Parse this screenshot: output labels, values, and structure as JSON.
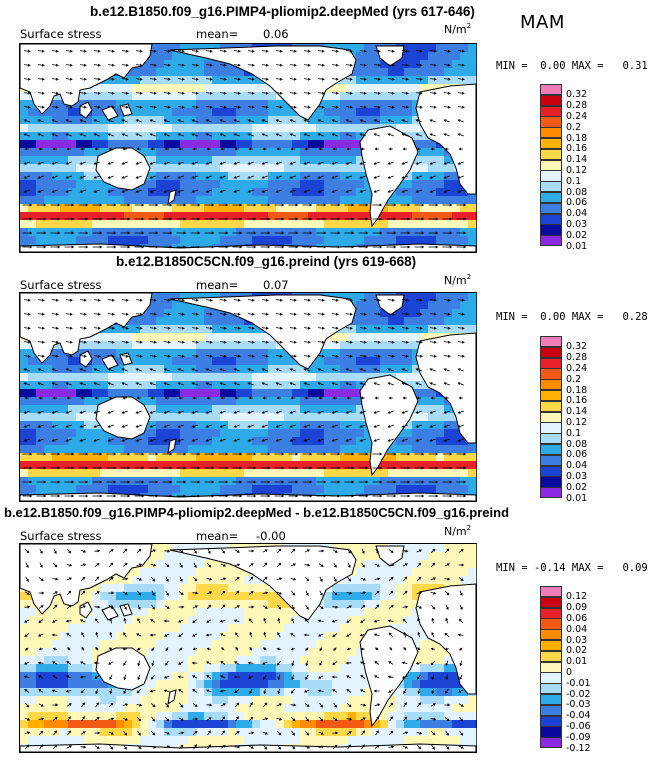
{
  "season": "MAM",
  "chart_data": [
    {
      "type": "heatmap",
      "title": "b.e12.B1850.f09_g16.PIMP4-pliomip2.deepMed (yrs 617-646)",
      "variable": "Surface stress",
      "mean_label": "mean=",
      "mean_value": "0.06",
      "units_base": "N/m",
      "units_exp": "2",
      "min_label": "MIN =",
      "min_value": "0.00",
      "max_label": "MAX =",
      "max_value": "0.31",
      "colorbar_labels": [
        "0.32",
        "0.28",
        "0.24",
        "0.2",
        "0.18",
        "0.16",
        "0.14",
        "0.12",
        "0.1",
        "0.08",
        "0.06",
        "0.04",
        "0.03",
        "0.02",
        "0.01"
      ],
      "colorbar_colors": [
        "#f07cb8",
        "#cc0010",
        "#e8202a",
        "#f05a14",
        "#ff8c00",
        "#ffb000",
        "#ffd84a",
        "#fff8b8",
        "#e4f4ff",
        "#a8dcf6",
        "#2eaae8",
        "#3c7ee2",
        "#1c44d4",
        "#0a0a9e",
        "#8a2be2"
      ]
    },
    {
      "type": "heatmap",
      "title": "b.e12.B1850C5CN.f09_g16.preind (yrs 619-668)",
      "variable": "Surface stress",
      "mean_label": "mean=",
      "mean_value": "0.07",
      "units_base": "N/m",
      "units_exp": "2",
      "min_label": "MIN =",
      "min_value": "0.00",
      "max_label": "MAX =",
      "max_value": "0.28",
      "colorbar_labels": [
        "0.32",
        "0.28",
        "0.24",
        "0.2",
        "0.18",
        "0.16",
        "0.14",
        "0.12",
        "0.1",
        "0.08",
        "0.06",
        "0.04",
        "0.03",
        "0.02",
        "0.01"
      ],
      "colorbar_colors": [
        "#f07cb8",
        "#cc0010",
        "#e8202a",
        "#f05a14",
        "#ff8c00",
        "#ffb000",
        "#ffd84a",
        "#fff8b8",
        "#e4f4ff",
        "#a8dcf6",
        "#2eaae8",
        "#3c7ee2",
        "#1c44d4",
        "#0a0a9e",
        "#8a2be2"
      ]
    },
    {
      "type": "heatmap",
      "title": "b.e12.B1850.f09_g16.PIMP4-pliomip2.deepMed - b.e12.B1850C5CN.f09_g16.preind",
      "variable": "Surface stress",
      "mean_label": "mean=",
      "mean_value": "-0.00",
      "units_base": "N/m",
      "units_exp": "2",
      "min_label": "MIN =",
      "min_value": "-0.14",
      "max_label": "MAX =",
      "max_value": "0.09",
      "colorbar_labels": [
        "0.12",
        "0.09",
        "0.06",
        "0.04",
        "0.03",
        "0.02",
        "0.01",
        "0",
        "-0.01",
        "-0.02",
        "-0.03",
        "-0.04",
        "-0.06",
        "-0.09",
        "-0.12"
      ],
      "colorbar_colors": [
        "#f07cb8",
        "#cc0010",
        "#e8202a",
        "#f05a14",
        "#ff8c00",
        "#ffb000",
        "#ffd84a",
        "#fff8b8",
        "#e4f4ff",
        "#a8dcf6",
        "#2eaae8",
        "#3c7ee2",
        "#1c44d4",
        "#0a0a9e",
        "#8a2be2"
      ]
    }
  ]
}
